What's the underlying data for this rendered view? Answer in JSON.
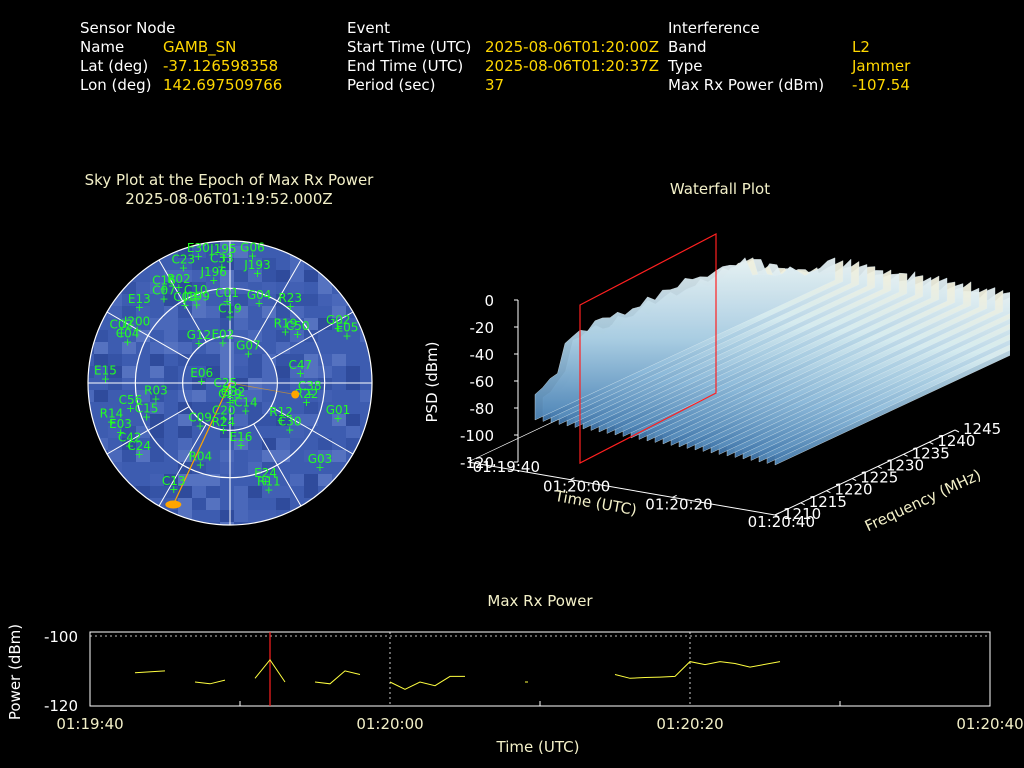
{
  "header": {
    "sensor": {
      "heading": "Sensor Node",
      "name_label": "Name",
      "name": "GAMB_SN",
      "lat_label": "Lat (deg)",
      "lat": "-37.126598358",
      "lon_label": "Lon (deg)",
      "lon": "142.697509766"
    },
    "event": {
      "heading": "Event",
      "start_label": "Start Time (UTC)",
      "start": "2025-08-06T01:20:00Z",
      "end_label": "End Time (UTC)",
      "end": "2025-08-06T01:20:37Z",
      "period_label": "Period (sec)",
      "period": "37"
    },
    "interference": {
      "heading": "Interference",
      "band_label": "Band",
      "band": "L2",
      "type_label": "Type",
      "type": "Jammer",
      "maxrx_label": "Max Rx Power (dBm)",
      "maxrx": "-107.54"
    }
  },
  "colors": {
    "label": "#ffffff",
    "value": "#ffd700",
    "title": "#f3f0c8",
    "sky_bg": "#3d5cb0",
    "sat": "#22ff22",
    "marker": "#ffa500",
    "waterfall_plane": "#ff2020",
    "line": "#ffff40"
  },
  "chart_data": [
    {
      "type": "scatter",
      "subtype": "polar-sky-plot",
      "title": "Sky Plot at the Epoch of Max Rx Power",
      "subtitle": "2025-08-06T01:19:52.000Z",
      "rings_elevation_deg": [
        0,
        30,
        60,
        90
      ],
      "satellites": [
        {
          "id": "E30",
          "az": -14,
          "el": 7
        },
        {
          "id": "J195",
          "az": -3,
          "el": 10
        },
        {
          "id": "G06",
          "az": 10,
          "el": 8
        },
        {
          "id": "C23",
          "az": -22,
          "el": 11
        },
        {
          "id": "C33",
          "az": -4,
          "el": 16
        },
        {
          "id": "J193",
          "az": 14,
          "el": 18
        },
        {
          "id": "J196",
          "az": -9,
          "el": 24
        },
        {
          "id": "C16",
          "az": -35,
          "el": 17
        },
        {
          "id": "R02",
          "az": -28,
          "el": 21
        },
        {
          "id": "C07",
          "az": -38,
          "el": 22
        },
        {
          "id": "C10",
          "az": -22,
          "el": 32
        },
        {
          "id": "E13",
          "az": -50,
          "el": 15
        },
        {
          "id": "C01",
          "az": -2,
          "el": 38
        },
        {
          "id": "G04",
          "az": 20,
          "el": 36
        },
        {
          "id": "C03",
          "az": -30,
          "el": 33
        },
        {
          "id": "J199",
          "az": -23,
          "el": 36
        },
        {
          "id": "G02",
          "az": 63,
          "el": 13
        },
        {
          "id": "E05",
          "az": 68,
          "el": 10
        },
        {
          "id": "R23",
          "az": 38,
          "el": 28
        },
        {
          "id": "C19",
          "az": 0,
          "el": 48
        },
        {
          "id": "J200",
          "az": -60,
          "el": 22
        },
        {
          "id": "C02",
          "az": -65,
          "el": 14
        },
        {
          "id": "C04",
          "az": -68,
          "el": 20
        },
        {
          "id": "R19",
          "az": 47,
          "el": 42
        },
        {
          "id": "C50",
          "az": 54,
          "el": 37
        },
        {
          "id": "G12",
          "az": -38,
          "el": 58
        },
        {
          "id": "E02",
          "az": -10,
          "el": 64
        },
        {
          "id": "G07",
          "az": 32,
          "el": 68
        },
        {
          "id": "E15",
          "az": -88,
          "el": 11
        },
        {
          "id": "E06",
          "az": -86,
          "el": 72
        },
        {
          "id": "C47",
          "az": 82,
          "el": 45
        },
        {
          "id": "R03",
          "az": -102,
          "el": 42
        },
        {
          "id": "C38",
          "az": 98,
          "el": 39
        },
        {
          "id": "R22",
          "az": 104,
          "el": 40
        },
        {
          "id": "C56",
          "az": -104,
          "el": 25
        },
        {
          "id": "C15",
          "az": -112,
          "el": 33
        },
        {
          "id": "C25",
          "az": -150,
          "el": 84
        },
        {
          "id": "C29",
          "az": 180,
          "el": 78
        },
        {
          "id": "R14",
          "az": -108,
          "el": 11
        },
        {
          "id": "E03",
          "az": -114,
          "el": 14
        },
        {
          "id": "C42",
          "az": -122,
          "el": 15
        },
        {
          "id": "C24",
          "az": -128,
          "el": 17
        },
        {
          "id": "C09",
          "az": -145,
          "el": 57
        },
        {
          "id": "C20",
          "az": -170,
          "el": 67
        },
        {
          "id": "C14",
          "az": 150,
          "el": 70
        },
        {
          "id": "G32",
          "az": 170,
          "el": 79
        },
        {
          "id": "R24",
          "az": -172,
          "el": 60
        },
        {
          "id": "E16",
          "az": 170,
          "el": 50
        },
        {
          "id": "R12",
          "az": 126,
          "el": 50
        },
        {
          "id": "C30",
          "az": 128,
          "el": 42
        },
        {
          "id": "G01",
          "az": 108,
          "el": 18
        },
        {
          "id": "R04",
          "az": -160,
          "el": 35
        },
        {
          "id": "C13",
          "az": -152,
          "el": 14
        },
        {
          "id": "E24",
          "az": 160,
          "el": 24
        },
        {
          "id": "R11",
          "az": 160,
          "el": 18
        },
        {
          "id": "G03",
          "az": 133,
          "el": 12
        }
      ],
      "markers": [
        {
          "az": -155,
          "el": 5
        },
        {
          "az": 100,
          "el": 48
        }
      ]
    },
    {
      "type": "area",
      "subtype": "3d-waterfall",
      "title": "Waterfall Plot",
      "xlabel": "Time (UTC)",
      "ylabel": "Frequency (MHz)",
      "zlabel": "PSD (dBm)",
      "x_ticks": [
        "01:19:40",
        "01:20:00",
        "01:20:20",
        "01:20:40"
      ],
      "y_ticks": [
        "1210",
        "1215",
        "1220",
        "1225",
        "1230",
        "1235",
        "1240",
        "1245"
      ],
      "z_ticks": [
        "0",
        "-20",
        "-40",
        "-60",
        "-80",
        "-100",
        "-120"
      ],
      "zlim": [
        -120,
        0
      ],
      "plane_time": "01:19:52"
    },
    {
      "type": "line",
      "title": "Max Rx Power",
      "xlabel": "Time (UTC)",
      "ylabel": "Power (dBm)",
      "x_ticks": [
        "01:19:40",
        "01:20:00",
        "01:20:20",
        "01:20:40"
      ],
      "y_ticks": [
        "-100",
        "-120"
      ],
      "ylim": [
        -120,
        -100
      ],
      "xlim_sec": [
        0,
        60
      ],
      "marker_sec": 12,
      "segments": [
        [
          [
            3,
            -111
          ],
          [
            5,
            -110.5
          ]
        ],
        [
          [
            7,
            -113.5
          ],
          [
            8,
            -114
          ],
          [
            9,
            -113
          ]
        ],
        [
          [
            11,
            -112.5
          ],
          [
            12,
            -107.5
          ],
          [
            13,
            -113.5
          ]
        ],
        [
          [
            15,
            -113.5
          ],
          [
            16,
            -114
          ],
          [
            17,
            -110.5
          ],
          [
            18,
            -111.5
          ]
        ],
        [
          [
            20,
            -113.5
          ],
          [
            21,
            -115.5
          ],
          [
            22,
            -113.5
          ],
          [
            23,
            -114.5
          ],
          [
            24,
            -112
          ],
          [
            25,
            -112
          ]
        ],
        [
          [
            29,
            -113.5
          ],
          [
            29.2,
            -113.5
          ]
        ],
        [
          [
            35,
            -111.5
          ],
          [
            36,
            -112.5
          ],
          [
            37,
            -112.3
          ],
          [
            38,
            -112.2
          ],
          [
            39,
            -112
          ],
          [
            40,
            -108
          ],
          [
            41,
            -108.8
          ],
          [
            42,
            -108
          ],
          [
            43,
            -108.5
          ],
          [
            44,
            -109.5
          ],
          [
            46,
            -108
          ]
        ]
      ]
    }
  ]
}
